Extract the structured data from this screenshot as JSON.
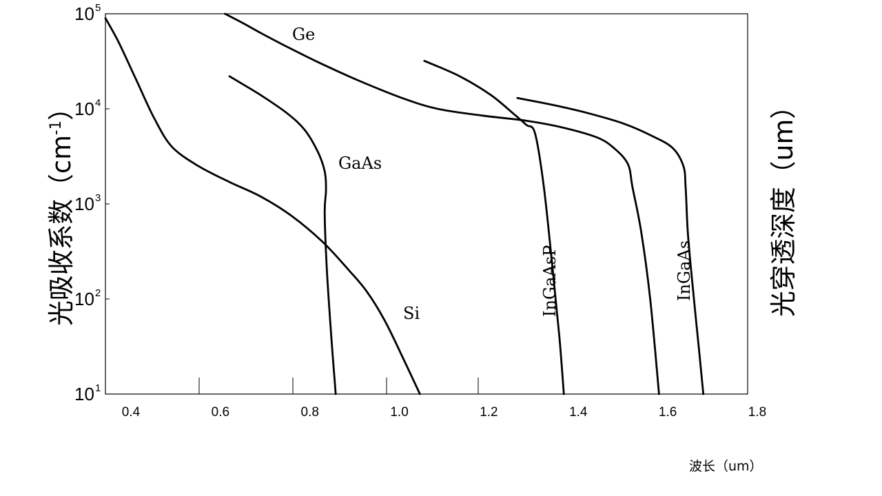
{
  "chart_data": {
    "type": "line",
    "title": "",
    "xlabel": "波长（um）",
    "ylabel_left": "光吸收系数（cm-1）",
    "ylabel_left_parts": {
      "main": "光吸收系数（cm",
      "sup": "-1",
      "close": "）"
    },
    "ylabel_right": "光穿透深度（um）",
    "xlim": [
      0.35,
      1.8
    ],
    "ylim": [
      10,
      100000
    ],
    "yscale": "log",
    "xticks": [
      "0.4",
      "0.6",
      "0.8",
      "1.0",
      "1.2",
      "1.4",
      "1.6",
      "1.8"
    ],
    "yticks": [
      {
        "base": "10",
        "exp": "1",
        "value": 10
      },
      {
        "base": "10",
        "exp": "2",
        "value": 100
      },
      {
        "base": "10",
        "exp": "3",
        "value": 1000
      },
      {
        "base": "10",
        "exp": "4",
        "value": 10000
      },
      {
        "base": "10",
        "exp": "5",
        "value": 100000
      }
    ],
    "grid": false,
    "series": [
      {
        "name": "Ge",
        "x": [
          0.62,
          0.66,
          0.7,
          0.76,
          0.83,
          0.92,
          1.02,
          1.1,
          1.2,
          1.3,
          1.38,
          1.46,
          1.5,
          1.53,
          1.54,
          1.56,
          1.58,
          1.6
        ],
        "y": [
          100000,
          80000,
          63000,
          45000,
          31000,
          20000,
          13000,
          10000,
          8500,
          7500,
          6400,
          5000,
          3800,
          2600,
          1500,
          500,
          100,
          10
        ]
      },
      {
        "name": "Si",
        "x": [
          0.35,
          0.38,
          0.42,
          0.46,
          0.5,
          0.56,
          0.63,
          0.7,
          0.77,
          0.84,
          0.9,
          0.94,
          0.98,
          1.02,
          1.06
        ],
        "y": [
          90000,
          50000,
          20000,
          8000,
          4000,
          2500,
          1700,
          1200,
          750,
          400,
          200,
          120,
          60,
          25,
          10
        ]
      },
      {
        "name": "GaAs",
        "x": [
          0.63,
          0.7,
          0.76,
          0.8,
          0.83,
          0.845,
          0.848,
          0.845,
          0.85,
          0.86,
          0.87
        ],
        "y": [
          22000,
          14000,
          9000,
          6000,
          3500,
          2200,
          1400,
          800,
          200,
          40,
          10
        ]
      },
      {
        "name": "InGaAsP",
        "x": [
          1.07,
          1.15,
          1.22,
          1.27,
          1.3,
          1.32,
          1.34,
          1.36,
          1.375,
          1.385
        ],
        "y": [
          32000,
          22000,
          14000,
          9000,
          6800,
          5500,
          1500,
          200,
          40,
          10
        ]
      },
      {
        "name": "InGaAs",
        "x": [
          1.28,
          1.36,
          1.44,
          1.52,
          1.58,
          1.63,
          1.655,
          1.66,
          1.665,
          1.675,
          1.69,
          1.7
        ],
        "y": [
          13000,
          11000,
          9000,
          7000,
          5300,
          3900,
          2500,
          1500,
          500,
          150,
          30,
          10
        ]
      }
    ]
  }
}
